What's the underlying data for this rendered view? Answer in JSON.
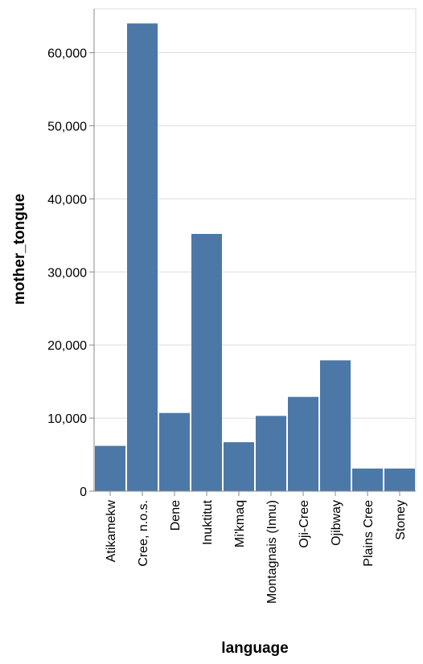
{
  "chart_data": {
    "type": "bar",
    "categories": [
      "Atikamekw",
      "Cree, n.o.s.",
      "Dene",
      "Inuktitut",
      "Mi'kmaq",
      "Montagnais (Innu)",
      "Oji-Cree",
      "Ojibway",
      "Plains Cree",
      "Stoney"
    ],
    "values": [
      6200,
      64000,
      10700,
      35200,
      6700,
      10300,
      12900,
      17900,
      3100,
      3100
    ],
    "xlabel": "language",
    "ylabel": "mother_tongue",
    "ylim": [
      0,
      66000
    ],
    "yticks": [
      0,
      10000,
      20000,
      30000,
      40000,
      50000,
      60000
    ],
    "ytick_labels": [
      "0",
      "10,000",
      "20,000",
      "30,000",
      "40,000",
      "50,000",
      "60,000"
    ],
    "grid": true,
    "colors": {
      "bar": "#4c78a8"
    }
  }
}
